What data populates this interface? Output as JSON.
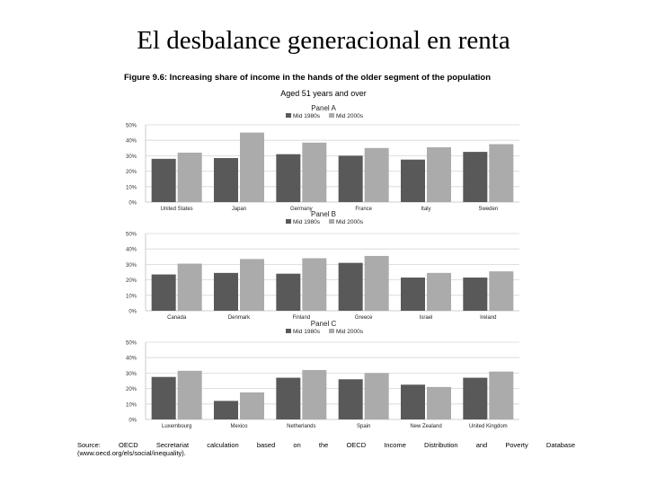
{
  "slide": {
    "title": "El desbalance generacional en renta"
  },
  "figure": {
    "title": "Figure 9.6: Increasing share of income in the hands of the older segment of the population",
    "subtitle": "Aged 51 years and over"
  },
  "colors": {
    "series1": "#595959",
    "series2": "#ababab",
    "grid": "#d6d6d6",
    "axis": "#bfbfbf"
  },
  "chart_data": [
    {
      "type": "bar",
      "title": "Panel A",
      "categories": [
        "United States",
        "Japan",
        "Germany",
        "France",
        "Italy",
        "Sweden"
      ],
      "series": [
        {
          "name": "Mid 1980s",
          "values": [
            28,
            28.5,
            31,
            30,
            27.5,
            32.5
          ]
        },
        {
          "name": "Mid 2000s",
          "values": [
            32,
            45,
            38.5,
            35,
            35.5,
            37.5
          ]
        }
      ],
      "ylim": [
        0,
        50
      ],
      "yticks": [
        "0%",
        "10%",
        "20%",
        "30%",
        "40%",
        "50%"
      ],
      "grid": true,
      "legend": "top-center"
    },
    {
      "type": "bar",
      "title": "Panel B",
      "categories": [
        "Canada",
        "Denmark",
        "Finland",
        "Greece",
        "Israel",
        "Ireland"
      ],
      "series": [
        {
          "name": "Mid 1980s",
          "values": [
            23.5,
            24.5,
            24,
            31,
            21.5,
            21.5
          ]
        },
        {
          "name": "Mid 2000s",
          "values": [
            30.5,
            33.5,
            34,
            35.5,
            24.5,
            25.5
          ]
        }
      ],
      "ylim": [
        0,
        50
      ],
      "yticks": [
        "0%",
        "10%",
        "20%",
        "30%",
        "40%",
        "50%"
      ],
      "grid": true,
      "legend": "top-center"
    },
    {
      "type": "bar",
      "title": "Panel C",
      "categories": [
        "Luxembourg",
        "Mexico",
        "Netherlands",
        "Spain",
        "New Zealand",
        "United Kingdom"
      ],
      "series": [
        {
          "name": "Mid 1980s",
          "values": [
            27.5,
            12,
            27,
            26,
            22.5,
            27
          ]
        },
        {
          "name": "Mid 2000s",
          "values": [
            31.5,
            17.5,
            32,
            30,
            21,
            31
          ]
        }
      ],
      "ylim": [
        0,
        50
      ],
      "yticks": [
        "0%",
        "10%",
        "20%",
        "30%",
        "40%",
        "50%"
      ],
      "grid": true,
      "legend": "top-center"
    }
  ],
  "source": {
    "line1_words": [
      "Source:",
      "OECD",
      "Secretariat",
      "calculation",
      "based",
      "on",
      "the",
      "OECD",
      "Income",
      "Distribution",
      "and",
      "Poverty",
      "Database"
    ],
    "line2": "(www.oecd.org/els/social/inequality)."
  }
}
